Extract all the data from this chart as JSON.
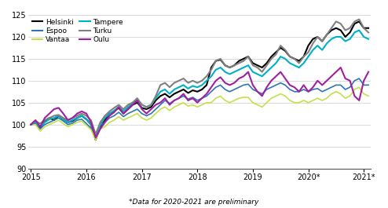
{
  "footnote": "*Data for 2020-2021 are preliminary",
  "cities": [
    "Helsinki",
    "Espoo",
    "Vantaa",
    "Tampere",
    "Turku",
    "Oulu"
  ],
  "colors": {
    "Helsinki": "#000000",
    "Espoo": "#2E75B6",
    "Vantaa": "#C5E04A",
    "Tampere": "#00B0C8",
    "Turku": "#808080",
    "Oulu": "#A020A0"
  },
  "ylim": [
    90,
    125
  ],
  "yticks": [
    90,
    95,
    100,
    105,
    110,
    115,
    120,
    125
  ],
  "xtick_years": [
    "2015",
    "2016",
    "2017",
    "2018",
    "2019",
    "2020*",
    "2021*"
  ],
  "year_positions": [
    0,
    12,
    24,
    36,
    48,
    60,
    72
  ],
  "n_months": 74,
  "Helsinki": [
    100.0,
    100.3,
    99.2,
    100.8,
    101.5,
    101.0,
    102.0,
    101.2,
    100.5,
    100.8,
    101.5,
    102.0,
    101.2,
    100.0,
    96.5,
    99.5,
    101.0,
    102.5,
    103.0,
    103.8,
    102.5,
    103.5,
    104.5,
    105.0,
    103.8,
    103.5,
    104.0,
    105.5,
    106.5,
    107.0,
    106.2,
    107.0,
    107.5,
    108.0,
    107.2,
    107.8,
    107.5,
    108.0,
    109.0,
    113.0,
    114.5,
    114.8,
    113.5,
    113.0,
    113.5,
    114.5,
    115.0,
    115.5,
    114.0,
    113.5,
    113.0,
    114.0,
    115.5,
    116.5,
    117.5,
    116.8,
    115.5,
    115.0,
    114.5,
    115.5,
    118.0,
    119.5,
    120.0,
    119.0,
    120.5,
    121.5,
    122.0,
    121.5,
    120.0,
    121.0,
    123.0,
    123.5,
    122.0,
    122.0
  ],
  "Espoo": [
    100.0,
    100.2,
    99.0,
    100.0,
    100.5,
    101.0,
    101.5,
    100.8,
    100.0,
    100.3,
    101.0,
    101.2,
    100.2,
    99.2,
    96.8,
    99.8,
    100.5,
    101.5,
    102.0,
    102.8,
    101.8,
    102.5,
    103.0,
    103.5,
    102.5,
    102.0,
    102.5,
    103.5,
    104.5,
    105.5,
    104.8,
    105.5,
    106.0,
    106.5,
    105.8,
    106.2,
    105.5,
    106.0,
    106.5,
    107.5,
    108.5,
    109.0,
    108.0,
    107.5,
    108.0,
    108.5,
    109.0,
    109.2,
    108.0,
    107.5,
    107.0,
    108.0,
    108.5,
    109.0,
    109.5,
    109.0,
    108.0,
    107.5,
    107.5,
    108.0,
    107.5,
    108.0,
    108.2,
    107.5,
    108.0,
    108.5,
    109.0,
    109.0,
    108.0,
    108.5,
    110.0,
    110.5,
    109.0,
    109.0
  ],
  "Vantaa": [
    100.0,
    100.0,
    98.5,
    99.5,
    100.0,
    100.5,
    101.0,
    100.2,
    99.5,
    100.0,
    100.5,
    100.8,
    99.8,
    98.8,
    96.5,
    99.0,
    99.5,
    100.5,
    101.0,
    101.8,
    101.0,
    101.5,
    102.0,
    102.5,
    101.5,
    101.0,
    101.5,
    102.5,
    103.5,
    104.0,
    103.2,
    104.0,
    104.5,
    105.0,
    104.2,
    104.5,
    104.0,
    104.5,
    105.0,
    105.0,
    106.0,
    106.5,
    105.5,
    105.0,
    105.5,
    106.0,
    106.2,
    106.2,
    105.0,
    104.5,
    104.0,
    105.0,
    106.0,
    106.5,
    107.0,
    106.5,
    105.5,
    105.0,
    105.0,
    105.5,
    105.0,
    105.5,
    106.0,
    105.5,
    106.0,
    107.0,
    107.5,
    107.0,
    106.0,
    106.5,
    108.0,
    108.5,
    107.0,
    106.5
  ],
  "Tampere": [
    100.0,
    100.5,
    99.5,
    100.5,
    101.2,
    101.5,
    102.0,
    101.2,
    100.5,
    101.0,
    101.5,
    102.0,
    101.2,
    100.0,
    97.5,
    100.0,
    101.5,
    102.5,
    103.2,
    104.0,
    103.0,
    104.0,
    105.0,
    105.5,
    104.5,
    104.0,
    104.5,
    106.0,
    107.5,
    108.0,
    107.0,
    108.0,
    108.5,
    109.0,
    108.2,
    108.8,
    108.5,
    109.0,
    110.0,
    111.0,
    112.5,
    113.0,
    112.0,
    111.5,
    112.0,
    112.5,
    113.0,
    113.5,
    112.0,
    111.5,
    111.0,
    112.0,
    113.0,
    114.0,
    115.5,
    115.0,
    114.0,
    113.5,
    113.0,
    114.0,
    115.5,
    117.0,
    118.0,
    117.0,
    118.5,
    119.5,
    120.0,
    120.0,
    119.0,
    119.5,
    121.0,
    121.5,
    120.0,
    119.5
  ],
  "Turku": [
    100.0,
    100.8,
    100.2,
    101.0,
    101.5,
    102.0,
    102.2,
    101.5,
    101.0,
    101.5,
    102.0,
    102.5,
    102.0,
    101.0,
    97.8,
    100.5,
    102.0,
    103.0,
    103.8,
    104.5,
    103.5,
    104.5,
    105.0,
    106.0,
    104.5,
    104.0,
    104.5,
    106.5,
    109.0,
    109.5,
    108.5,
    109.5,
    110.0,
    110.5,
    109.5,
    110.0,
    109.5,
    110.0,
    111.0,
    112.5,
    114.5,
    115.0,
    113.5,
    113.0,
    113.5,
    114.0,
    114.5,
    115.5,
    113.5,
    113.0,
    112.0,
    113.5,
    115.0,
    116.0,
    118.0,
    117.0,
    115.5,
    115.0,
    114.0,
    115.5,
    116.5,
    118.5,
    120.0,
    119.0,
    120.5,
    122.0,
    123.5,
    123.0,
    121.5,
    122.0,
    123.5,
    124.0,
    122.0,
    121.0
  ],
  "Oulu": [
    100.0,
    101.0,
    99.5,
    101.5,
    102.5,
    103.5,
    103.8,
    102.5,
    101.0,
    101.5,
    102.5,
    103.0,
    102.5,
    100.5,
    97.0,
    99.0,
    100.5,
    102.0,
    102.8,
    104.0,
    102.5,
    103.5,
    104.5,
    105.5,
    103.5,
    102.5,
    103.5,
    104.5,
    105.0,
    106.0,
    104.5,
    105.5,
    106.0,
    107.0,
    105.5,
    106.0,
    105.0,
    106.0,
    107.0,
    108.5,
    110.0,
    110.8,
    109.5,
    109.0,
    109.5,
    110.5,
    111.0,
    112.0,
    109.0,
    107.5,
    106.5,
    108.5,
    110.0,
    111.0,
    112.0,
    110.5,
    109.0,
    108.5,
    107.5,
    109.0,
    107.5,
    108.5,
    110.0,
    109.0,
    110.0,
    111.0,
    112.0,
    113.0,
    110.5,
    110.0,
    106.5,
    105.5,
    110.0,
    112.0
  ]
}
